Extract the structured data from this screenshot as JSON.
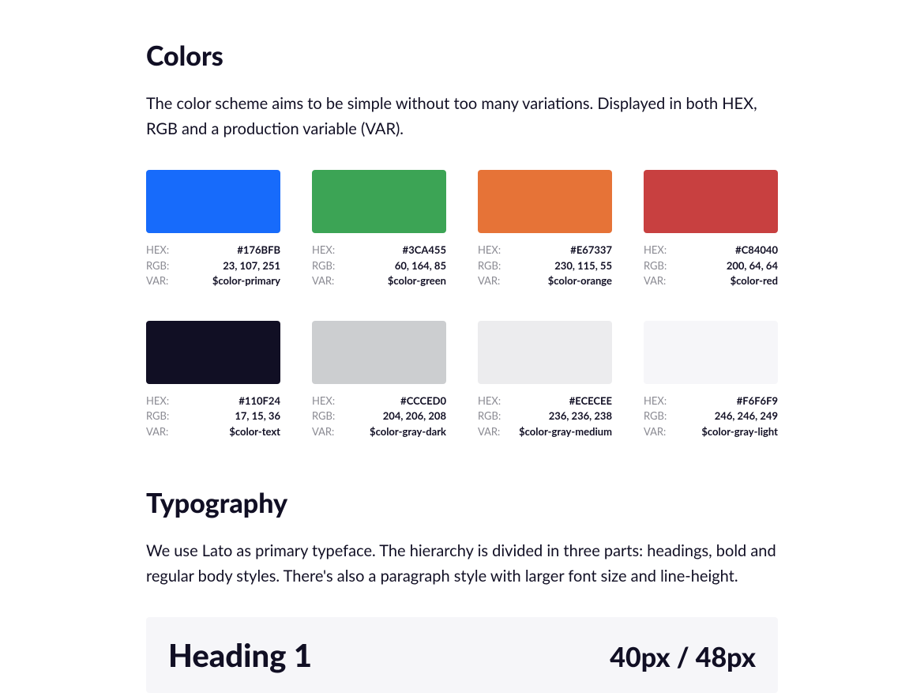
{
  "colors": {
    "title": "Colors",
    "desc": "The color scheme aims to be simple without too many variations. Displayed in both HEX, RGB and a production variable (VAR).",
    "label_hex": "HEX:",
    "label_rgb": "RGB:",
    "label_var": "VAR:",
    "swatches": [
      {
        "hex": "#176BFB",
        "rgb": "23, 107, 251",
        "var": "$color-primary",
        "fill": "#176BFB"
      },
      {
        "hex": "#3CA455",
        "rgb": "60, 164, 85",
        "var": "$color-green",
        "fill": "#3CA455"
      },
      {
        "hex": "#E67337",
        "rgb": "230, 115, 55",
        "var": "$color-orange",
        "fill": "#E67337"
      },
      {
        "hex": "#C84040",
        "rgb": "200, 64, 64",
        "var": "$color-red",
        "fill": "#C84040"
      },
      {
        "hex": "#110F24",
        "rgb": "17, 15, 36",
        "var": "$color-text",
        "fill": "#110F24"
      },
      {
        "hex": "#CCCED0",
        "rgb": "204, 206, 208",
        "var": "$color-gray-dark",
        "fill": "#CCCED0"
      },
      {
        "hex": "#ECECEE",
        "rgb": "236, 236, 238",
        "var": "$color-gray-medium",
        "fill": "#ECECEE"
      },
      {
        "hex": "#F6F6F9",
        "rgb": "246, 246, 249",
        "var": "$color-gray-light",
        "fill": "#F6F6F9"
      }
    ]
  },
  "typography": {
    "title": "Typography",
    "desc": "We use Lato as primary typeface. The hierarchy is divided in three parts: headings, bold and regular body styles. There's also a paragraph style with larger font size and line-height.",
    "sample_name": "Heading 1",
    "sample_size": "40px / 48px",
    "sample_bg": "#F6F6F9"
  }
}
